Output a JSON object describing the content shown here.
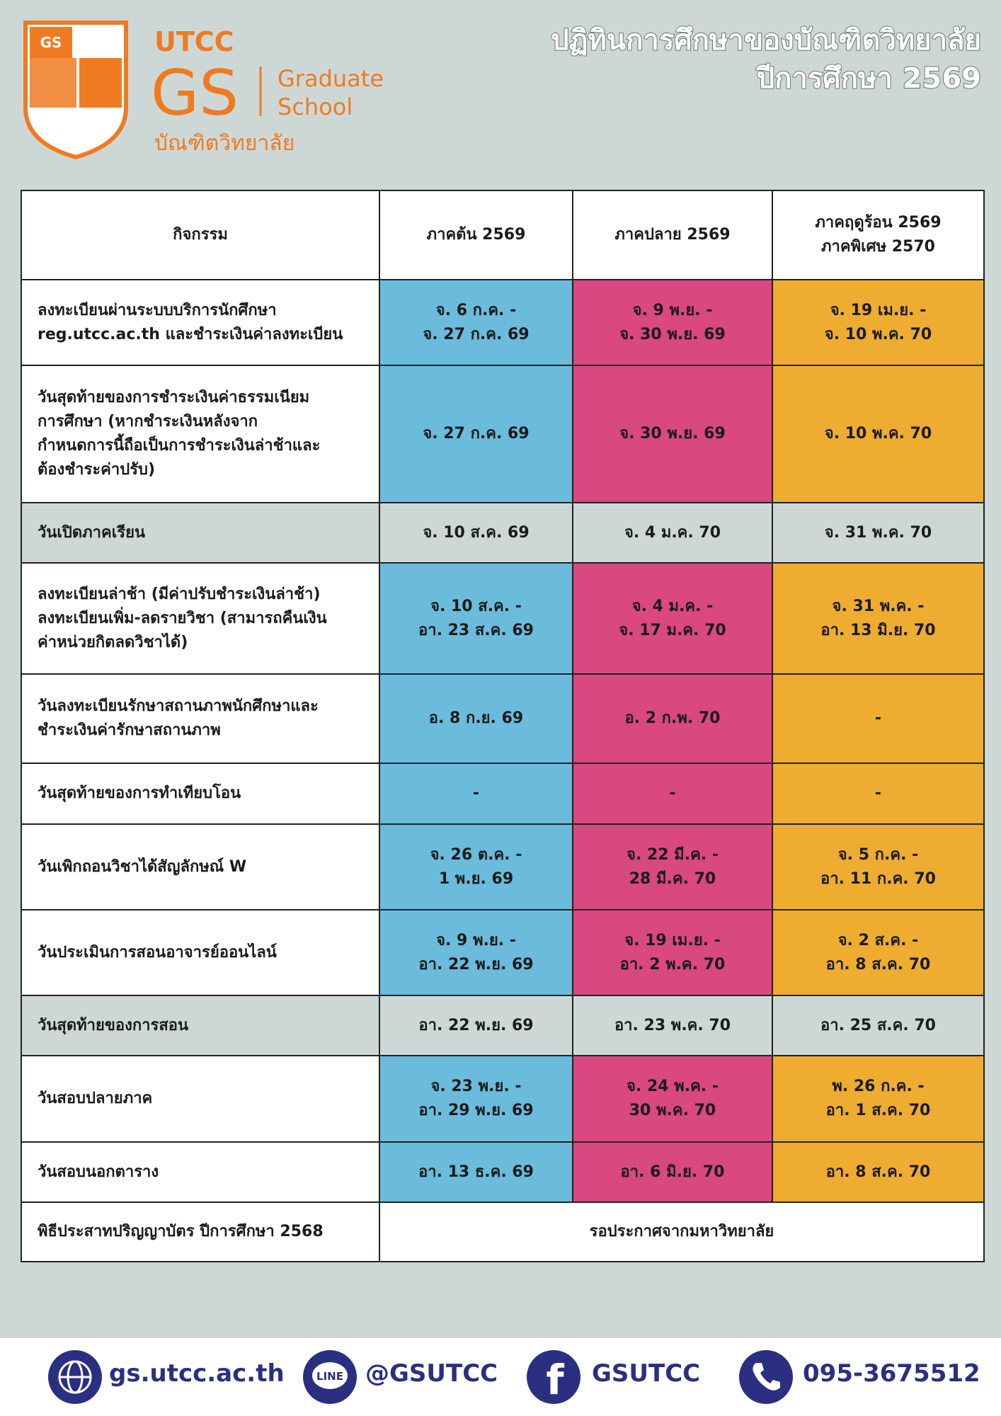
{
  "header": {
    "logo": {
      "badge": "GS",
      "utcc": "UTCC",
      "gs": "GS",
      "graduate": "Graduate",
      "school": "School",
      "thai": "บัณฑิตวิทยาลัย"
    },
    "title": [
      "ปฏิทินการศึกษาของบัณฑิตวิทยาลัย",
      "ปีการศึกษา 2569"
    ]
  },
  "table": {
    "headers": [
      [
        "กิจกรรม"
      ],
      [
        "ภาคต้น 2569"
      ],
      [
        "ภาคปลาย 2569"
      ],
      [
        "ภาคฤดูร้อน 2569",
        "ภาคพิเศษ 2570"
      ]
    ],
    "rows": [
      {
        "activity": [
          "ลงทะเบียนผ่านระบบบริการนักศึกษา",
          "reg.utcc.ac.th และชำระเงินค่าลงทะเบียน"
        ],
        "cells": [
          [
            "จ. 6 ก.ค. -",
            "จ. 27 ก.ค. 69"
          ],
          [
            "จ. 9 พ.ย. -",
            "จ. 30 พ.ย. 69"
          ],
          [
            "จ. 19 เม.ย. -",
            "จ. 10 พ.ค. 70"
          ]
        ]
      },
      {
        "activity": [
          "วันสุดท้ายของการชำระเงินค่าธรรมเนียม",
          "การศึกษา (หากชำระเงินหลังจาก",
          "กำหนดการนี้ถือเป็นการชำระเงินล่าช้าและ",
          "ต้องชำระค่าปรับ)"
        ],
        "cells": [
          [
            "จ. 27 ก.ค. 69"
          ],
          [
            "จ. 30 พ.ย. 69"
          ],
          [
            "จ. 10 พ.ค. 70"
          ]
        ]
      },
      {
        "activity": [
          "วันเปิดภาคเรียน"
        ],
        "cells": [
          [
            "จ. 10 ส.ค. 69"
          ],
          [
            "จ. 4 ม.ค. 70"
          ],
          [
            "จ. 31 พ.ค. 70"
          ]
        ]
      },
      {
        "activity": [
          "ลงทะเบียนล่าช้า (มีค่าปรับชำระเงินล่าช้า)",
          "ลงทะเบียนเพิ่ม-ลดรายวิชา (สามารถคืนเงิน",
          "ค่าหน่วยกิตลดวิชาได้)"
        ],
        "cells": [
          [
            "จ. 10 ส.ค. -",
            "อา. 23 ส.ค. 69"
          ],
          [
            "จ. 4 ม.ค. -",
            "จ. 17 ม.ค. 70"
          ],
          [
            "จ. 31 พ.ค. -",
            "อา. 13 มิ.ย. 70"
          ]
        ]
      },
      {
        "activity": [
          "วันลงทะเบียนรักษาสถานภาพนักศึกษาและ",
          "ชำระเงินค่ารักษาสถานภาพ"
        ],
        "cells": [
          [
            "อ. 8 ก.ย. 69"
          ],
          [
            "อ. 2 ก.พ. 70"
          ],
          [
            "-"
          ]
        ]
      },
      {
        "activity": [
          "วันสุดท้ายของการทำเทียบโอน"
        ],
        "cells": [
          [
            "-"
          ],
          [
            "-"
          ],
          [
            "-"
          ]
        ]
      },
      {
        "activity": [
          "วันเพิกถอนวิชาได้สัญลักษณ์ W"
        ],
        "cells": [
          [
            "จ. 26 ต.ค. -",
            "1 พ.ย. 69"
          ],
          [
            "จ. 22 มี.ค. -",
            "28 มี.ค. 70"
          ],
          [
            "จ. 5 ก.ค. -",
            "อา. 11 ก.ค. 70"
          ]
        ]
      },
      {
        "activity": [
          "วันประเมินการสอนอาจารย์ออนไลน์"
        ],
        "cells": [
          [
            "จ. 9 พ.ย. -",
            "อา. 22 พ.ย. 69"
          ],
          [
            "จ. 19 เม.ย. -",
            "อา. 2 พ.ค. 70"
          ],
          [
            "จ. 2 ส.ค. -",
            "อา. 8 ส.ค. 70"
          ]
        ]
      },
      {
        "activity": [
          "วันสุดท้ายของการสอน"
        ],
        "cells": [
          [
            "อา. 22 พ.ย. 69"
          ],
          [
            "อา. 23 พ.ค. 70"
          ],
          [
            "อา. 25 ส.ค. 70"
          ]
        ]
      },
      {
        "activity": [
          "วันสอบปลายภาค"
        ],
        "cells": [
          [
            "จ. 23 พ.ย. -",
            "อา. 29 พ.ย. 69"
          ],
          [
            "จ. 24 พ.ค. -",
            "30 พ.ค. 70"
          ],
          [
            "พ. 26 ก.ค. -",
            "อา. 1 ส.ค. 70"
          ]
        ]
      },
      {
        "activity": [
          "วันสอบนอกตาราง"
        ],
        "cells": [
          [
            "อา. 13 ธ.ค. 69"
          ],
          [
            "อา. 6 มิ.ย. 70"
          ],
          [
            "อา. 8 ส.ค. 70"
          ]
        ]
      },
      {
        "activity": [
          "พิธีประสาทปริญญาบัตร ปีการศึกษา 2568"
        ],
        "cells": [
          [
            "รอประกาศจากมหาวิทยาลัย"
          ]
        ]
      }
    ]
  },
  "footer": {
    "website": "gs.utcc.ac.th",
    "line_icon": "LINE",
    "line": "@GSUTCC",
    "facebook_icon": "f",
    "facebook": "GSUTCC",
    "phone": "095-3675512"
  }
}
